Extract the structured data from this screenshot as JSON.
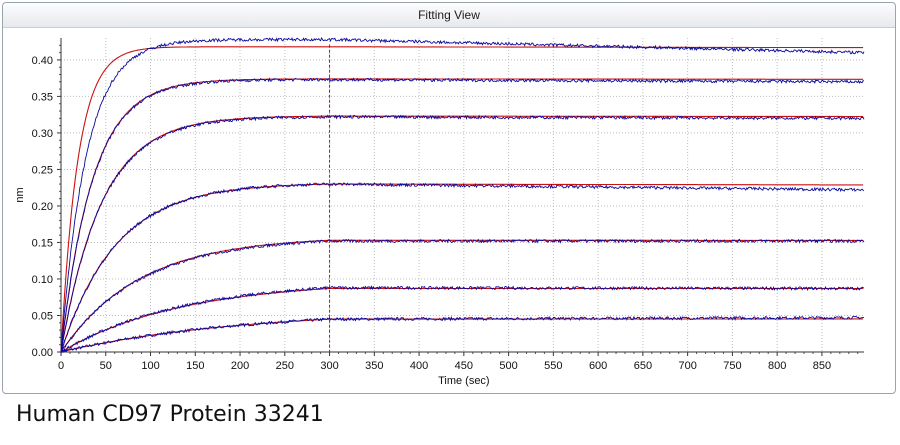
{
  "panel": {
    "title": "Fitting View"
  },
  "caption": "Human CD97 Protein 33241",
  "colors": {
    "raw_data": "#0a0a9e",
    "fit": "#cc1111",
    "grid": "#bdbdbd",
    "divider": "#cc1111"
  },
  "chart_data": {
    "type": "line",
    "title": "Fitting View",
    "xlabel": "Time (sec)",
    "ylabel": "nm",
    "xlim": [
      0,
      897
    ],
    "ylim": [
      0,
      0.43
    ],
    "x_ticks": [
      0,
      50,
      100,
      150,
      200,
      250,
      300,
      350,
      400,
      450,
      500,
      550,
      600,
      650,
      700,
      750,
      800,
      850
    ],
    "y_ticks": [
      0.0,
      0.05,
      0.1,
      0.15,
      0.2,
      0.25,
      0.3,
      0.35,
      0.4
    ],
    "y_tick_labels": [
      "0.00",
      "0.05",
      "0.10",
      "0.15",
      "0.20",
      "0.25",
      "0.30",
      "0.35",
      "0.40"
    ],
    "grid": "dotted",
    "association_end": 300,
    "series_kind": [
      "raw_data",
      "fit"
    ],
    "curves": [
      {
        "plateau_at_300": 0.045,
        "end_value": 0.047,
        "fit_plateau": 0.045
      },
      {
        "plateau_at_300": 0.088,
        "end_value": 0.087,
        "fit_plateau": 0.087
      },
      {
        "plateau_at_300": 0.152,
        "end_value": 0.152,
        "fit_plateau": 0.153
      },
      {
        "plateau_at_300": 0.23,
        "end_value": 0.222,
        "fit_plateau": 0.23
      },
      {
        "plateau_at_300": 0.322,
        "end_value": 0.32,
        "fit_plateau": 0.323
      },
      {
        "plateau_at_300": 0.373,
        "end_value": 0.37,
        "fit_plateau": 0.374
      },
      {
        "plateau_at_300": 0.428,
        "end_value": 0.41,
        "fit_plateau": 0.418
      }
    ]
  }
}
